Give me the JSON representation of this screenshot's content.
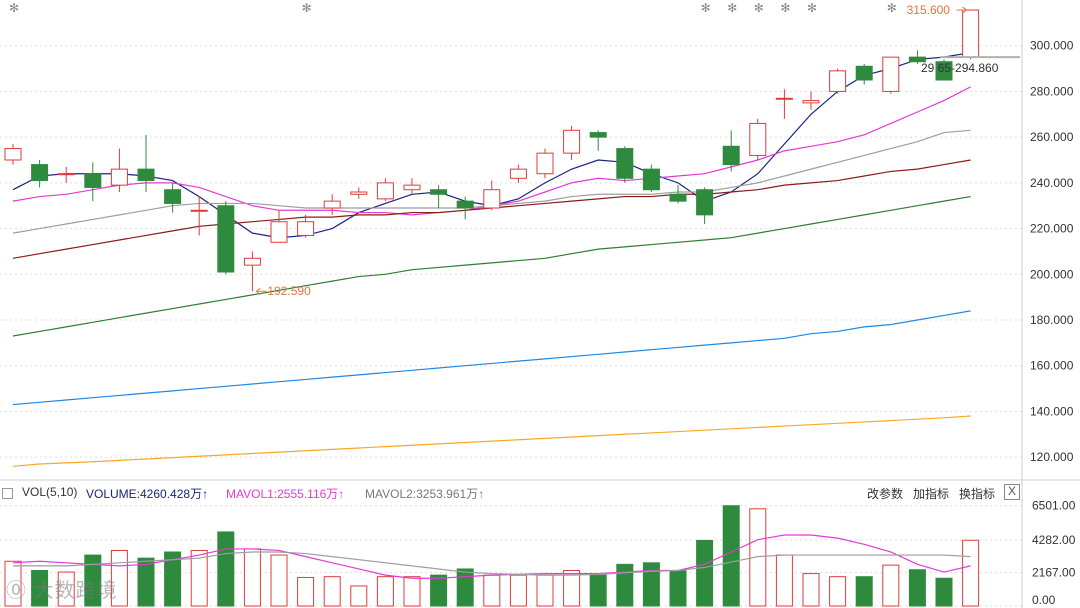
{
  "chart_data": {
    "type": "candlestick",
    "price_axis": {
      "ticks": [
        120,
        140,
        160,
        180,
        200,
        220,
        240,
        260,
        280,
        300
      ],
      "tick_labels": [
        "120.000",
        "140.000",
        "160.000",
        "180.000",
        "200.000",
        "220.000",
        "240.000",
        "260.000",
        "280.000",
        "300.000"
      ],
      "ylim": [
        110,
        320
      ]
    },
    "candles": [
      {
        "o": 250,
        "h": 257,
        "l": 248,
        "c": 255
      },
      {
        "o": 248,
        "h": 250,
        "l": 238,
        "c": 241
      },
      {
        "o": 244,
        "h": 247,
        "l": 240,
        "c": 244
      },
      {
        "o": 244,
        "h": 249,
        "l": 232,
        "c": 238
      },
      {
        "o": 239,
        "h": 255,
        "l": 236,
        "c": 246
      },
      {
        "o": 246,
        "h": 261,
        "l": 236,
        "c": 241
      },
      {
        "o": 237,
        "h": 240,
        "l": 227,
        "c": 231
      },
      {
        "o": 228,
        "h": 234,
        "l": 217,
        "c": 228
      },
      {
        "o": 230,
        "h": 232,
        "l": 200,
        "c": 201
      },
      {
        "o": 204,
        "h": 210,
        "l": 192.59,
        "c": 207
      },
      {
        "o": 214,
        "h": 228,
        "l": 214,
        "c": 223
      },
      {
        "o": 217,
        "h": 226,
        "l": 216,
        "c": 223
      },
      {
        "o": 229,
        "h": 235,
        "l": 226,
        "c": 232
      },
      {
        "o": 235,
        "h": 238,
        "l": 233,
        "c": 236
      },
      {
        "o": 233,
        "h": 242,
        "l": 232,
        "c": 240
      },
      {
        "o": 237,
        "h": 242,
        "l": 235,
        "c": 239
      },
      {
        "o": 237,
        "h": 239,
        "l": 229,
        "c": 235
      },
      {
        "o": 232,
        "h": 234,
        "l": 224,
        "c": 229
      },
      {
        "o": 229,
        "h": 241,
        "l": 228,
        "c": 237
      },
      {
        "o": 242,
        "h": 248,
        "l": 240,
        "c": 246
      },
      {
        "o": 244,
        "h": 255,
        "l": 242,
        "c": 253
      },
      {
        "o": 253,
        "h": 265,
        "l": 250,
        "c": 263
      },
      {
        "o": 262,
        "h": 263,
        "l": 254,
        "c": 260
      },
      {
        "o": 255,
        "h": 256,
        "l": 240,
        "c": 242
      },
      {
        "o": 246,
        "h": 248,
        "l": 236,
        "c": 237
      },
      {
        "o": 235,
        "h": 239,
        "l": 231,
        "c": 232
      },
      {
        "o": 237,
        "h": 238,
        "l": 222,
        "c": 226
      },
      {
        "o": 256,
        "h": 263,
        "l": 245,
        "c": 248
      },
      {
        "o": 252,
        "h": 268,
        "l": 250,
        "c": 266
      },
      {
        "o": 277,
        "h": 281,
        "l": 268,
        "c": 277
      },
      {
        "o": 275,
        "h": 280,
        "l": 272,
        "c": 276
      },
      {
        "o": 280,
        "h": 290,
        "l": 279,
        "c": 289
      },
      {
        "o": 291,
        "h": 292,
        "l": 283,
        "c": 285
      },
      {
        "o": 280,
        "h": 295,
        "l": 279,
        "c": 295
      },
      {
        "o": 295,
        "h": 298,
        "l": 292,
        "c": 293
      },
      {
        "o": 293,
        "h": 294,
        "l": 285,
        "c": 285
      },
      {
        "o": 295,
        "h": 315.6,
        "l": 294,
        "c": 315.6
      }
    ],
    "ma_lines": [
      {
        "color": "#1a237e",
        "values": [
          237,
          243,
          244,
          244,
          244,
          243,
          241,
          234,
          226,
          218,
          216,
          217,
          220,
          227,
          231,
          235,
          236,
          232,
          230,
          233,
          240,
          246,
          250,
          249,
          244,
          240,
          232,
          236,
          244,
          257,
          270,
          280,
          287,
          290,
          294,
          295,
          297
        ]
      },
      {
        "color": "#e33ad5",
        "values": [
          232,
          234,
          235,
          237,
          239,
          240,
          240,
          238,
          234,
          230,
          228,
          228,
          228,
          227,
          227,
          226,
          227,
          228,
          230,
          232,
          236,
          240,
          242,
          241,
          242,
          243,
          244,
          247,
          250,
          254,
          256,
          258,
          261,
          266,
          271,
          276,
          282
        ]
      },
      {
        "color": "#9e9e9e",
        "values": [
          218,
          220,
          222,
          224,
          226,
          228,
          230,
          231,
          231,
          231,
          230,
          229,
          229,
          229,
          229,
          229,
          229,
          229,
          230,
          231,
          232,
          234,
          235,
          235,
          235,
          236,
          236,
          238,
          240,
          243,
          246,
          249,
          252,
          255,
          258,
          262,
          263
        ]
      },
      {
        "color": "#8b1a1a",
        "values": [
          207,
          209,
          211,
          213,
          215,
          217,
          219,
          221,
          222,
          223,
          224,
          225,
          225,
          226,
          226,
          227,
          227,
          228,
          229,
          230,
          231,
          232,
          233,
          234,
          234,
          235,
          235,
          236,
          237,
          239,
          240,
          241,
          243,
          245,
          246,
          248,
          250
        ]
      },
      {
        "color": "#2e7d32",
        "values": [
          173,
          175,
          177,
          179,
          181,
          183,
          185,
          187,
          189,
          191,
          193,
          195,
          197,
          199,
          200,
          202,
          203,
          204,
          205,
          206,
          207,
          209,
          211,
          212,
          213,
          214,
          215,
          216,
          218,
          220,
          222,
          224,
          226,
          228,
          230,
          232,
          234
        ]
      },
      {
        "color": "#1e88e5",
        "values": [
          143,
          144,
          145,
          146,
          147,
          148,
          149,
          150,
          151,
          152,
          153,
          154,
          155,
          156,
          157,
          158,
          159,
          160,
          161,
          162,
          163,
          164,
          165,
          166,
          167,
          168,
          169,
          170,
          171,
          172,
          174,
          175,
          177,
          178,
          180,
          182,
          184
        ]
      },
      {
        "color": "#f9a825",
        "values": [
          116,
          117,
          117.5,
          118,
          118.6,
          119.2,
          119.8,
          120.4,
          121,
          121.6,
          122.2,
          122.8,
          123.4,
          124,
          124.6,
          125.2,
          125.8,
          126.4,
          127,
          127.6,
          128.2,
          128.8,
          129.4,
          130,
          130.6,
          131.2,
          131.8,
          132.4,
          133,
          133.6,
          134.2,
          134.8,
          135.4,
          136,
          136.6,
          137.2,
          138
        ]
      }
    ],
    "annotations": {
      "high_label": "315.600",
      "low_label": "192.590",
      "range_label": "29",
      "range_label_rest": "65-294.860"
    },
    "top_markers": [
      0,
      11,
      26,
      27,
      28,
      29,
      30,
      33
    ],
    "volume": {
      "ticks": [
        0,
        2167,
        4282,
        6501
      ],
      "tick_labels": [
        "0.00",
        "2167.00",
        "4282.00",
        "6501.00"
      ],
      "ylim": [
        0,
        7000
      ],
      "values": [
        2900,
        2300,
        2200,
        3300,
        3600,
        3100,
        3500,
        3600,
        4800,
        3700,
        3300,
        1850,
        1900,
        1300,
        1900,
        1900,
        2000,
        2400,
        2000,
        2000,
        2000,
        2300,
        2000,
        2700,
        2800,
        2300,
        4250,
        6500,
        6300,
        3300,
        2100,
        1900,
        1900,
        2650,
        2350,
        1800,
        4260
      ],
      "ma5": [
        2800,
        2900,
        2800,
        2700,
        2600,
        2700,
        3000,
        3300,
        3700,
        3700,
        3600,
        3200,
        2800,
        2400,
        2000,
        1800,
        1800,
        1900,
        2000,
        2050,
        2100,
        2100,
        2100,
        2200,
        2300,
        2300,
        2700,
        3500,
        4300,
        4600,
        4600,
        4400,
        4000,
        3500,
        2700,
        2200,
        2600
      ],
      "ma10": [
        2600,
        2600,
        2600,
        2700,
        2800,
        2900,
        3000,
        3100,
        3400,
        3500,
        3500,
        3400,
        3200,
        3000,
        2800,
        2600,
        2400,
        2200,
        2100,
        2050,
        2000,
        2000,
        2050,
        2150,
        2250,
        2300,
        2500,
        2850,
        3200,
        3300,
        3300,
        3300,
        3300,
        3300,
        3300,
        3300,
        3200
      ]
    }
  },
  "indicator_bar": {
    "name": "VOL(5,10)",
    "volume": "VOLUME:4260.428万",
    "mavol1": "MAVOL1:2555.116万",
    "mavol2": "MAVOL2:3253.961万",
    "arrow": "↑",
    "btn_params": "改参数",
    "btn_add": "加指标",
    "btn_switch": "换指标",
    "close": "X"
  },
  "colors": {
    "up": "#e03a3a",
    "down": "#2e8b3e",
    "grid": "#dddddd",
    "annotation": "#e8743b",
    "volume_label": "#1a237e",
    "mavol1_label": "#e33ad5",
    "mavol2_label": "#777777"
  },
  "watermark": "大数跨境"
}
